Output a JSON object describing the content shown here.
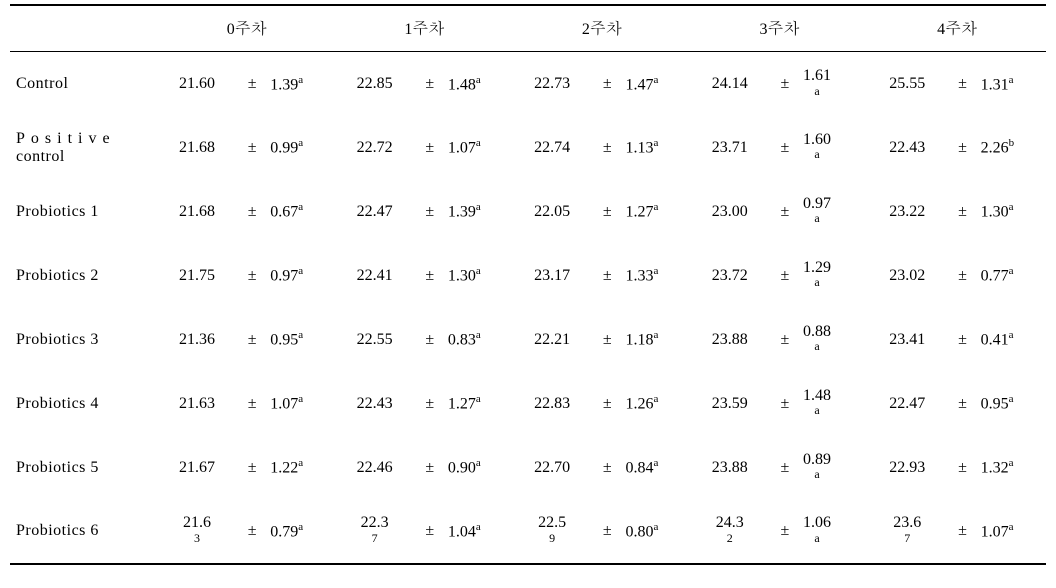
{
  "weeks": [
    "0주차",
    "1주차",
    "2주차",
    "3주차",
    "4주차"
  ],
  "rows": [
    {
      "label": {
        "text": "Control",
        "spaced": false,
        "twoLine": false
      },
      "cells": [
        {
          "val": "21.60",
          "valStack": false,
          "pm": "±",
          "sd": "1.39",
          "sup": "a",
          "sdStack": false
        },
        {
          "val": "22.85",
          "valStack": false,
          "pm": "±",
          "sd": "1.48",
          "sup": "a",
          "sdStack": false
        },
        {
          "val": "22.73",
          "valStack": false,
          "pm": "±",
          "sd": "1.47",
          "sup": "a",
          "sdStack": false
        },
        {
          "val": "24.14",
          "valStack": false,
          "pm": "±",
          "sd": "1.61",
          "sup": "a",
          "sdStack": true
        },
        {
          "val": "25.55",
          "valStack": false,
          "pm": "±",
          "sd": "1.31",
          "sup": "a",
          "sdStack": false
        }
      ]
    },
    {
      "label": {
        "text": "Positive",
        "spaced": true,
        "twoLine": true,
        "line2": "control"
      },
      "cells": [
        {
          "val": "21.68",
          "valStack": false,
          "pm": "±",
          "sd": "0.99",
          "sup": "a",
          "sdStack": false
        },
        {
          "val": "22.72",
          "valStack": false,
          "pm": "±",
          "sd": "1.07",
          "sup": "a",
          "sdStack": false
        },
        {
          "val": "22.74",
          "valStack": false,
          "pm": "±",
          "sd": "1.13",
          "sup": "a",
          "sdStack": false
        },
        {
          "val": "23.71",
          "valStack": false,
          "pm": "±",
          "sd": "1.60",
          "sup": "a",
          "sdStack": true
        },
        {
          "val": "22.43",
          "valStack": false,
          "pm": "±",
          "sd": "2.26",
          "sup": "b",
          "sdStack": false
        }
      ]
    },
    {
      "label": {
        "text": "Probiotics 1",
        "spaced": false,
        "twoLine": false
      },
      "cells": [
        {
          "val": "21.68",
          "valStack": false,
          "pm": "±",
          "sd": "0.67",
          "sup": "a",
          "sdStack": false
        },
        {
          "val": "22.47",
          "valStack": false,
          "pm": "±",
          "sd": "1.39",
          "sup": "a",
          "sdStack": false
        },
        {
          "val": "22.05",
          "valStack": false,
          "pm": "±",
          "sd": "1.27",
          "sup": "a",
          "sdStack": false
        },
        {
          "val": "23.00",
          "valStack": false,
          "pm": "±",
          "sd": "0.97",
          "sup": "a",
          "sdStack": true
        },
        {
          "val": "23.22",
          "valStack": false,
          "pm": "±",
          "sd": "1.30",
          "sup": "a",
          "sdStack": false
        }
      ]
    },
    {
      "label": {
        "text": "Probiotics 2",
        "spaced": false,
        "twoLine": false
      },
      "cells": [
        {
          "val": "21.75",
          "valStack": false,
          "pm": "±",
          "sd": "0.97",
          "sup": "a",
          "sdStack": false
        },
        {
          "val": "22.41",
          "valStack": false,
          "pm": "±",
          "sd": "1.30",
          "sup": "a",
          "sdStack": false
        },
        {
          "val": "23.17",
          "valStack": false,
          "pm": "±",
          "sd": "1.33",
          "sup": "a",
          "sdStack": false
        },
        {
          "val": "23.72",
          "valStack": false,
          "pm": "±",
          "sd": "1.29",
          "sup": "a",
          "sdStack": true
        },
        {
          "val": "23.02",
          "valStack": false,
          "pm": "±",
          "sd": "0.77",
          "sup": "a",
          "sdStack": false
        }
      ]
    },
    {
      "label": {
        "text": "Probiotics 3",
        "spaced": false,
        "twoLine": false
      },
      "cells": [
        {
          "val": "21.36",
          "valStack": false,
          "pm": "±",
          "sd": "0.95",
          "sup": "a",
          "sdStack": false
        },
        {
          "val": "22.55",
          "valStack": false,
          "pm": "±",
          "sd": "0.83",
          "sup": "a",
          "sdStack": false
        },
        {
          "val": "22.21",
          "valStack": false,
          "pm": "±",
          "sd": "1.18",
          "sup": "a",
          "sdStack": false
        },
        {
          "val": "23.88",
          "valStack": false,
          "pm": "±",
          "sd": "0.88",
          "sup": "a",
          "sdStack": true
        },
        {
          "val": "23.41",
          "valStack": false,
          "pm": "±",
          "sd": "0.41",
          "sup": "a",
          "sdStack": false
        }
      ]
    },
    {
      "label": {
        "text": "Probiotics 4",
        "spaced": false,
        "twoLine": false
      },
      "cells": [
        {
          "val": "21.63",
          "valStack": false,
          "pm": "±",
          "sd": "1.07",
          "sup": "a",
          "sdStack": false
        },
        {
          "val": "22.43",
          "valStack": false,
          "pm": "±",
          "sd": "1.27",
          "sup": "a",
          "sdStack": false
        },
        {
          "val": "22.83",
          "valStack": false,
          "pm": "±",
          "sd": "1.26",
          "sup": "a",
          "sdStack": false
        },
        {
          "val": "23.59",
          "valStack": false,
          "pm": "±",
          "sd": "1.48",
          "sup": "a",
          "sdStack": true
        },
        {
          "val": "22.47",
          "valStack": false,
          "pm": "±",
          "sd": "0.95",
          "sup": "a",
          "sdStack": false
        }
      ]
    },
    {
      "label": {
        "text": "Probiotics 5",
        "spaced": false,
        "twoLine": false
      },
      "cells": [
        {
          "val": "21.67",
          "valStack": false,
          "pm": "±",
          "sd": "1.22",
          "sup": "a",
          "sdStack": false
        },
        {
          "val": "22.46",
          "valStack": false,
          "pm": "±",
          "sd": "0.90",
          "sup": "a",
          "sdStack": false
        },
        {
          "val": "22.70",
          "valStack": false,
          "pm": "±",
          "sd": "0.84",
          "sup": "a",
          "sdStack": false
        },
        {
          "val": "23.88",
          "valStack": false,
          "pm": "±",
          "sd": "0.89",
          "sup": "a",
          "sdStack": true
        },
        {
          "val": "22.93",
          "valStack": false,
          "pm": "±",
          "sd": "1.32",
          "sup": "a",
          "sdStack": false
        }
      ]
    },
    {
      "label": {
        "text": "Probiotics 6",
        "spaced": false,
        "twoLine": false
      },
      "cells": [
        {
          "val": "21.63",
          "valStack": true,
          "valTop": "21.6",
          "valBot": "3",
          "pm": "±",
          "sd": "0.79",
          "sup": "a",
          "sdStack": false
        },
        {
          "val": "22.37",
          "valStack": true,
          "valTop": "22.3",
          "valBot": "7",
          "pm": "±",
          "sd": "1.04",
          "sup": "a",
          "sdStack": false
        },
        {
          "val": "22.59",
          "valStack": true,
          "valTop": "22.5",
          "valBot": "9",
          "pm": "±",
          "sd": "0.80",
          "sup": "a",
          "sdStack": false
        },
        {
          "val": "24.32",
          "valStack": true,
          "valTop": "24.3",
          "valBot": "2",
          "pm": "±",
          "sd": "1.06",
          "sup": "a",
          "sdStack": true
        },
        {
          "val": "23.67",
          "valStack": true,
          "valTop": "23.6",
          "valBot": "7",
          "pm": "±",
          "sd": "1.07",
          "sup": "a",
          "sdStack": false
        }
      ]
    }
  ]
}
